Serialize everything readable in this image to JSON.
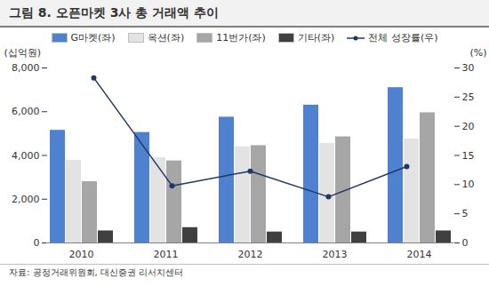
{
  "chart_data": {
    "type": "bar",
    "title": "그림 8. 오픈마켓 3사 총 거래액 추이",
    "ylabel": "(십억원)",
    "y2label": "(%)",
    "source": "자료: 공정거래위원회, 대신증권 리서치센터",
    "categories": [
      "2010",
      "2011",
      "2012",
      "2013",
      "2014"
    ],
    "series": [
      {
        "name": "G마켓(좌)",
        "color": "#4f81d1",
        "values": [
          5150,
          5050,
          5750,
          6300,
          7100
        ]
      },
      {
        "name": "옥션(좌)",
        "color": "#e3e3e3",
        "values": [
          3780,
          3900,
          4400,
          4550,
          4750
        ]
      },
      {
        "name": "11번가(좌)",
        "color": "#a6a6a6",
        "values": [
          2800,
          3750,
          4450,
          4850,
          5950
        ]
      },
      {
        "name": "기타(좌)",
        "color": "#404040",
        "values": [
          550,
          700,
          500,
          500,
          550
        ]
      },
      {
        "name": "전체 성장률(우)",
        "type": "line",
        "axis": "y2",
        "color": "#1f3864",
        "marker": "circle",
        "values": [
          28.3,
          9.8,
          12.3,
          7.9,
          13.1
        ]
      }
    ],
    "ylim": [
      0,
      8000
    ],
    "yticks": [
      0,
      {
        "value": 2000,
        "label": "2,000"
      },
      {
        "value": 4000,
        "label": "4,000"
      },
      {
        "value": 6000,
        "label": "6,000"
      },
      {
        "value": 8000,
        "label": "8,000"
      }
    ],
    "y2lim": [
      0,
      30
    ],
    "y2ticks": [
      0,
      5,
      10,
      15,
      20,
      25,
      30
    ],
    "grid": false,
    "legend": "top"
  }
}
